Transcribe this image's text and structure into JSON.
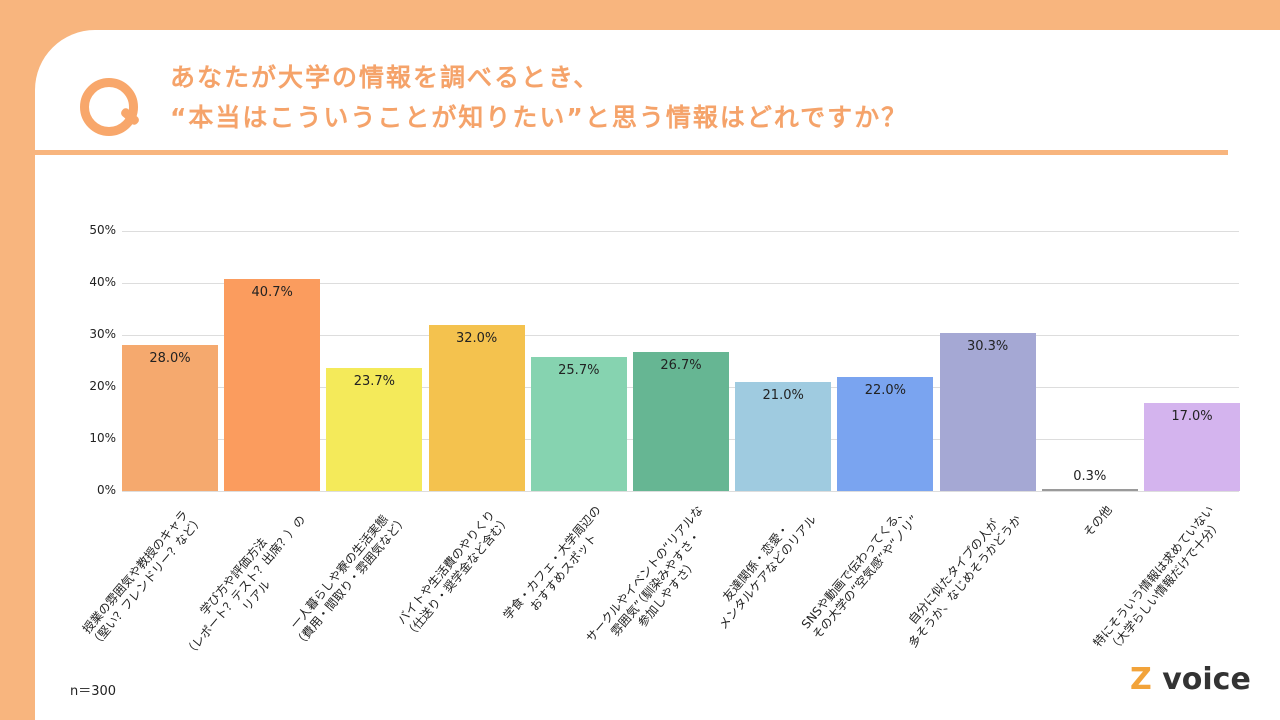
{
  "title": {
    "line1": "あなたが大学の情報を調べるとき、",
    "line2": "“本当はこういうことが知りたい”と思う情報はどれですか？"
  },
  "note": "n＝300",
  "logo": "Z voice",
  "chart_data": {
    "type": "bar",
    "ylim": [
      0,
      50
    ],
    "yticks": [
      "0%",
      "10%",
      "20%",
      "30%",
      "40%",
      "50%"
    ],
    "grid": true,
    "categories": [
      "授業の雰囲気や教授のキャラ\n（堅い？フレンドリー？など）",
      "学び方や評価方法\n（レポート？テスト？出席？）の\nリアル",
      "一人暮らしや寮の生活実態\n（費用・間取り・雰囲気など）",
      "バイトや生活費のやりくり\n（仕送り・奨学金など含む）",
      "学食・カフェ・大学周辺の\nおすすめスポット",
      "サークルやイベントの“リアルな\n雰囲気”（馴染みやすさ・\n参加しやすさ）",
      "友達関係・恋愛・\nメンタルケアなどのリアル",
      "SNSや動画で伝わってくる、\nその大学の“空気感”や“ノリ”",
      "自分に似たタイプの人が\n多そうか、なじめそうかどうか",
      "その他",
      "特にそういう情報は求めていない\n（大学らしい情報だけで十分）"
    ],
    "values": [
      28.0,
      40.7,
      23.7,
      32.0,
      25.7,
      26.7,
      21.0,
      22.0,
      30.3,
      0.3,
      17.0
    ],
    "labels": [
      "28.0%",
      "40.7%",
      "23.7%",
      "32.0%",
      "25.7%",
      "26.7%",
      "21.0%",
      "22.0%",
      "30.3%",
      "0.3%",
      "17.0%"
    ],
    "colors": [
      "#f5a96e",
      "#fb9c5e",
      "#f4ea5a",
      "#f4c24e",
      "#86d3b0",
      "#66b693",
      "#9fcbe0",
      "#7aa4f0",
      "#a5a8d4",
      "#9a9a9a",
      "#d4b4ee"
    ]
  }
}
